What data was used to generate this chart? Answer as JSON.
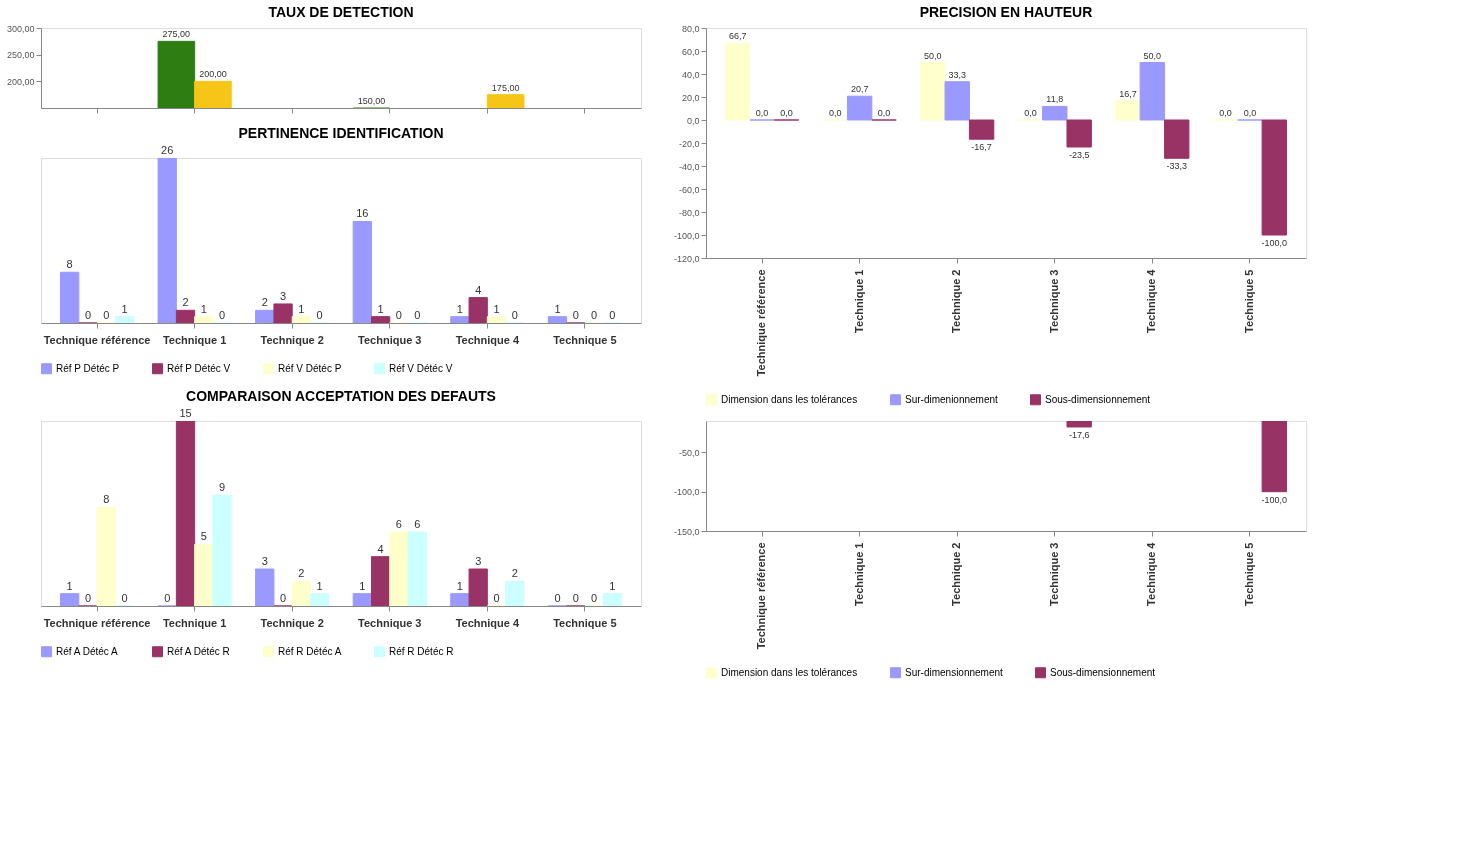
{
  "chart_data": [
    {
      "type": "bar",
      "title": "TAUX DE DETECTION",
      "categories": [
        null,
        null,
        null,
        null,
        null,
        null
      ],
      "ylim": [
        150,
        300
      ],
      "yticks": [
        {
          "value": 200,
          "label": "200,00"
        },
        {
          "value": 250,
          "label": "250,00"
        },
        {
          "value": 300,
          "label": "300,00"
        }
      ],
      "tick_labels": "y",
      "grid": false,
      "series": [
        {
          "color": "#2e7d12",
          "values": [
            null,
            275,
            null,
            150,
            null,
            null
          ],
          "value_labels": [
            null,
            "275,00",
            null,
            "150,00",
            null,
            null
          ]
        },
        {
          "color": "#f5c518",
          "values": [
            null,
            200,
            null,
            null,
            175,
            null
          ],
          "value_labels": [
            null,
            "200,00",
            null,
            null,
            "175,00",
            null
          ]
        }
      ]
    },
    {
      "type": "bar",
      "title": "PRECISION EN HAUTEUR",
      "categories": [
        "Technique référence",
        "Technique 1",
        "Technique 2",
        "Technique 3",
        "Technique 4",
        "Technique 5"
      ],
      "ylim": [
        -120,
        80
      ],
      "yticks": [
        {
          "value": -120,
          "label": "-120,0"
        },
        {
          "value": -100,
          "label": "-100,0"
        },
        {
          "value": -80,
          "label": "-80,0"
        },
        {
          "value": -60,
          "label": "-60,0"
        },
        {
          "value": -40,
          "label": "-40,0"
        },
        {
          "value": -20,
          "label": "-20,0"
        },
        {
          "value": 0,
          "label": "0,0"
        },
        {
          "value": 20,
          "label": "20,0"
        },
        {
          "value": 40,
          "label": "40,0"
        },
        {
          "value": 60,
          "label": "60,0"
        },
        {
          "value": 80,
          "label": "80,0"
        }
      ],
      "grid": false,
      "legend": "bottom",
      "series": [
        {
          "name": "Dimension dans les tolérances",
          "color": "#ffffcc",
          "values": [
            66.7,
            0.0,
            50.0,
            0.0,
            16.7,
            0.0
          ],
          "value_labels": [
            "66,7",
            "0,0",
            "50,0",
            "0,0",
            "16,7",
            "0,0"
          ]
        },
        {
          "name": "Sur-dimenionnement",
          "color": "#9999ff",
          "values": [
            0.0,
            20.7,
            33.3,
            11.8,
            50.0,
            0.0
          ],
          "value_labels": [
            "0,0",
            "20,7",
            "33,3",
            "11,8",
            "50,0",
            "0,0"
          ]
        },
        {
          "name": "Sous-dimensionnement",
          "color": "#993366",
          "values": [
            0.0,
            0.0,
            -16.7,
            -23.5,
            -33.3,
            -100.0
          ],
          "value_labels": [
            "0,0",
            "0,0",
            "-16,7",
            "-23,5",
            "-33,3",
            "-100,0"
          ]
        }
      ]
    },
    {
      "type": "bar",
      "title": "PERTINENCE IDENTIFICATION",
      "categories": [
        "Technique référence",
        "Technique 1",
        "Technique 2",
        "Technique 3",
        "Technique 4",
        "Technique 5"
      ],
      "data_labels": true,
      "grid": false,
      "legend": "bottom",
      "series": [
        {
          "name": "Réf P Détéc P",
          "color": "#9999ff",
          "values": [
            8,
            26,
            2,
            16,
            1,
            1
          ]
        },
        {
          "name": "Réf P Détéc V",
          "color": "#993366",
          "values": [
            0,
            2,
            3,
            1,
            4,
            0
          ]
        },
        {
          "name": "Réf V Détéc P",
          "color": "#ffffcc",
          "values": [
            0,
            1,
            1,
            0,
            1,
            0
          ]
        },
        {
          "name": "Réf V Détéc V",
          "color": "#ccffff",
          "values": [
            1,
            0,
            0,
            0,
            0,
            0
          ]
        }
      ]
    },
    {
      "type": "bar",
      "categories": [
        "Technique référence",
        "Technique 1",
        "Technique 2",
        "Technique 3",
        "Technique 4",
        "Technique 5"
      ],
      "ylim": [
        -150,
        -10
      ],
      "yticks": [
        {
          "value": -150,
          "label": "-150,0"
        },
        {
          "value": -100,
          "label": "-100,0"
        },
        {
          "value": -50,
          "label": "-50,0"
        }
      ],
      "grid": false,
      "legend": "bottom",
      "series": [
        {
          "name": "Dimension dans les tolérances",
          "color": "#ffffcc",
          "values": [
            null,
            null,
            null,
            null,
            null,
            null
          ]
        },
        {
          "name": "Sur-dimensionnement",
          "color": "#9999ff",
          "values": [
            null,
            null,
            null,
            null,
            null,
            null
          ]
        },
        {
          "name": "Sous-dimensionnement",
          "color": "#993366",
          "values": [
            null,
            null,
            null,
            -17.6,
            null,
            -100.0
          ],
          "value_labels": [
            null,
            null,
            null,
            "-17,6",
            null,
            "-100,0"
          ]
        }
      ]
    },
    {
      "type": "bar",
      "title": "COMPARAISON ACCEPTATION DES DEFAUTS",
      "categories": [
        "Technique référence",
        "Technique 1",
        "Technique 2",
        "Technique 3",
        "Technique 4",
        "Technique 5"
      ],
      "data_labels": true,
      "grid": false,
      "legend": "bottom",
      "series": [
        {
          "name": "Réf A Détéc A",
          "color": "#9999ff",
          "values": [
            1,
            0,
            3,
            1,
            1,
            0
          ]
        },
        {
          "name": "Réf A Détéc R",
          "color": "#993366",
          "values": [
            0,
            15,
            0,
            4,
            3,
            0
          ]
        },
        {
          "name": "Réf R Détéc A",
          "color": "#ffffcc",
          "values": [
            8,
            5,
            2,
            6,
            0,
            0
          ]
        },
        {
          "name": "Réf R Détéc R",
          "color": "#ccffff",
          "values": [
            0,
            9,
            1,
            6,
            2,
            1
          ]
        }
      ]
    }
  ]
}
